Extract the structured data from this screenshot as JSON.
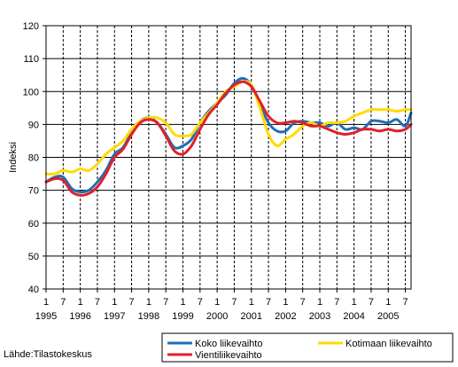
{
  "chart_data": {
    "type": "line",
    "ylabel": "Indeksi",
    "ylim": [
      40,
      120
    ],
    "yticks": [
      40,
      50,
      60,
      70,
      80,
      90,
      100,
      110,
      120
    ],
    "xlim": [
      "1995-01",
      "2005-09"
    ],
    "month_ticks": [
      "1",
      "7",
      "1",
      "7",
      "1",
      "7",
      "1",
      "7",
      "1",
      "7",
      "1",
      "7",
      "1",
      "7",
      "1",
      "7",
      "1",
      "7",
      "1",
      "7",
      "1",
      "7"
    ],
    "years": [
      "1995",
      "1996",
      "1997",
      "1998",
      "1999",
      "2000",
      "2001",
      "2002",
      "2003",
      "2004",
      "2005"
    ],
    "grid": "vertical dashed at Jan and Jul, horizontal solid",
    "source": "Lähde:Tilastokeskus",
    "legend": {
      "placement": "bottom-right"
    },
    "series": [
      {
        "name": "Koko liikevaihto",
        "color": "#1f6fb4",
        "points": [
          [
            "1995-01",
            72.5
          ],
          [
            "1995-04",
            74
          ],
          [
            "1995-07",
            74
          ],
          [
            "1995-10",
            70.5
          ],
          [
            "1996-01",
            69.5
          ],
          [
            "1996-04",
            70
          ],
          [
            "1996-07",
            72.5
          ],
          [
            "1996-10",
            76
          ],
          [
            "1997-01",
            81
          ],
          [
            "1997-04",
            83
          ],
          [
            "1997-07",
            87.5
          ],
          [
            "1997-10",
            91
          ],
          [
            "1998-01",
            92
          ],
          [
            "1998-04",
            90.5
          ],
          [
            "1998-07",
            87
          ],
          [
            "1998-10",
            83
          ],
          [
            "1999-01",
            83.5
          ],
          [
            "1999-04",
            85.5
          ],
          [
            "1999-07",
            90.5
          ],
          [
            "1999-10",
            94
          ],
          [
            "2000-01",
            96.5
          ],
          [
            "2000-04",
            99
          ],
          [
            "2000-07",
            102.5
          ],
          [
            "2000-10",
            104
          ],
          [
            "2001-01",
            102
          ],
          [
            "2001-04",
            96
          ],
          [
            "2001-07",
            90.5
          ],
          [
            "2001-10",
            88
          ],
          [
            "2002-01",
            88
          ],
          [
            "2002-04",
            90.5
          ],
          [
            "2002-07",
            91
          ],
          [
            "2002-10",
            90.5
          ],
          [
            "2003-01",
            90.5
          ],
          [
            "2003-04",
            89.5
          ],
          [
            "2003-07",
            90.5
          ],
          [
            "2003-10",
            88.5
          ],
          [
            "2004-01",
            89
          ],
          [
            "2004-04",
            88.5
          ],
          [
            "2004-07",
            91
          ],
          [
            "2004-10",
            91
          ],
          [
            "2005-01",
            90.5
          ],
          [
            "2005-04",
            91.5
          ],
          [
            "2005-07",
            89.5
          ],
          [
            "2005-09",
            93.5
          ]
        ]
      },
      {
        "name": "Kotimaan liikevaihto",
        "color": "#ffdb00",
        "points": [
          [
            "1995-01",
            75
          ],
          [
            "1995-04",
            75
          ],
          [
            "1995-07",
            76
          ],
          [
            "1995-10",
            75.5
          ],
          [
            "1996-01",
            76.5
          ],
          [
            "1996-04",
            76
          ],
          [
            "1996-07",
            78
          ],
          [
            "1996-10",
            81
          ],
          [
            "1997-01",
            83
          ],
          [
            "1997-04",
            85
          ],
          [
            "1997-07",
            88.5
          ],
          [
            "1997-10",
            91
          ],
          [
            "1998-01",
            92
          ],
          [
            "1998-04",
            92
          ],
          [
            "1998-07",
            90.5
          ],
          [
            "1998-10",
            87
          ],
          [
            "1999-01",
            86.5
          ],
          [
            "1999-04",
            87
          ],
          [
            "1999-07",
            90.5
          ],
          [
            "1999-10",
            93.5
          ],
          [
            "2000-01",
            96.5
          ],
          [
            "2000-04",
            100
          ],
          [
            "2000-07",
            101.5
          ],
          [
            "2000-10",
            103
          ],
          [
            "2001-01",
            102
          ],
          [
            "2001-04",
            95
          ],
          [
            "2001-07",
            87
          ],
          [
            "2001-10",
            83.5
          ],
          [
            "2002-01",
            85.5
          ],
          [
            "2002-04",
            87
          ],
          [
            "2002-07",
            89.5
          ],
          [
            "2002-10",
            90.5
          ],
          [
            "2003-01",
            89.5
          ],
          [
            "2003-04",
            90.5
          ],
          [
            "2003-07",
            90.5
          ],
          [
            "2003-10",
            91
          ],
          [
            "2004-01",
            92.5
          ],
          [
            "2004-04",
            93.5
          ],
          [
            "2004-07",
            94.5
          ],
          [
            "2004-10",
            94.5
          ],
          [
            "2005-01",
            94.5
          ],
          [
            "2005-04",
            94
          ],
          [
            "2005-07",
            94.5
          ],
          [
            "2005-09",
            94.5
          ]
        ]
      },
      {
        "name": "Vientiliikevaihto",
        "color": "#e0202a",
        "points": [
          [
            "1995-01",
            72.5
          ],
          [
            "1995-04",
            73.5
          ],
          [
            "1995-07",
            73
          ],
          [
            "1995-10",
            69.5
          ],
          [
            "1996-01",
            68.5
          ],
          [
            "1996-04",
            69
          ],
          [
            "1996-07",
            71
          ],
          [
            "1996-10",
            75
          ],
          [
            "1997-01",
            80
          ],
          [
            "1997-04",
            82.5
          ],
          [
            "1997-07",
            87
          ],
          [
            "1997-10",
            90.5
          ],
          [
            "1998-01",
            91.5
          ],
          [
            "1998-04",
            90.5
          ],
          [
            "1998-07",
            86.5
          ],
          [
            "1998-10",
            82
          ],
          [
            "1999-01",
            81
          ],
          [
            "1999-04",
            83.5
          ],
          [
            "1999-07",
            88.5
          ],
          [
            "1999-10",
            93
          ],
          [
            "2000-01",
            96
          ],
          [
            "2000-04",
            99.5
          ],
          [
            "2000-07",
            102
          ],
          [
            "2000-10",
            103
          ],
          [
            "2001-01",
            101.5
          ],
          [
            "2001-04",
            97
          ],
          [
            "2001-07",
            92.5
          ],
          [
            "2001-10",
            90.5
          ],
          [
            "2002-01",
            90.5
          ],
          [
            "2002-04",
            91
          ],
          [
            "2002-07",
            90.5
          ],
          [
            "2002-10",
            89.5
          ],
          [
            "2003-01",
            89.5
          ],
          [
            "2003-04",
            88.5
          ],
          [
            "2003-07",
            87.5
          ],
          [
            "2003-10",
            87
          ],
          [
            "2004-01",
            87.5
          ],
          [
            "2004-04",
            88.5
          ],
          [
            "2004-07",
            88.5
          ],
          [
            "2004-10",
            88
          ],
          [
            "2005-01",
            88.5
          ],
          [
            "2005-04",
            88
          ],
          [
            "2005-07",
            88.5
          ],
          [
            "2005-09",
            90
          ]
        ]
      }
    ]
  }
}
